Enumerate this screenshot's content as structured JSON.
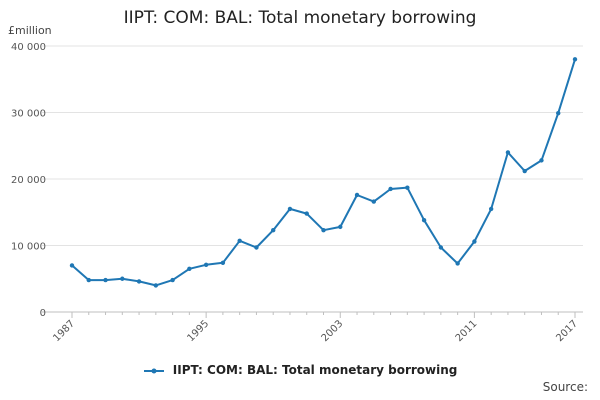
{
  "chart_data": {
    "type": "line",
    "title": "IIPT: COM: BAL: Total monetary borrowing",
    "ylabel": "£million",
    "ylim": [
      0,
      40000
    ],
    "y_ticks": [
      0,
      10000,
      20000,
      30000,
      40000
    ],
    "y_tick_labels": [
      "0",
      "10 000",
      "20 000",
      "30 000",
      "40 000"
    ],
    "x_ticks": [
      1987,
      1995,
      2003,
      2011,
      2017
    ],
    "x_tick_labels": [
      "1987",
      "1995",
      "2003",
      "2011",
      "2017"
    ],
    "xlim": [
      1987,
      2017
    ],
    "grid": true,
    "legend_position": "bottom",
    "series": [
      {
        "name": "IIPT: COM: BAL: Total monetary borrowing",
        "color": "#1f77b4",
        "x": [
          1987,
          1988,
          1989,
          1990,
          1991,
          1992,
          1993,
          1994,
          1995,
          1996,
          1997,
          1998,
          1999,
          2000,
          2001,
          2002,
          2003,
          2004,
          2005,
          2006,
          2007,
          2008,
          2009,
          2010,
          2011,
          2012,
          2013,
          2014,
          2015,
          2016,
          2017
        ],
        "y": [
          7000,
          4800,
          4800,
          5000,
          4600,
          4000,
          4800,
          6500,
          7100,
          7400,
          10700,
          9700,
          12300,
          15500,
          14800,
          12300,
          12800,
          17600,
          16600,
          18500,
          18700,
          13800,
          9700,
          7300,
          10600,
          15500,
          24000,
          21200,
          22800,
          29900,
          38000
        ]
      }
    ],
    "source_label": "Source:"
  }
}
